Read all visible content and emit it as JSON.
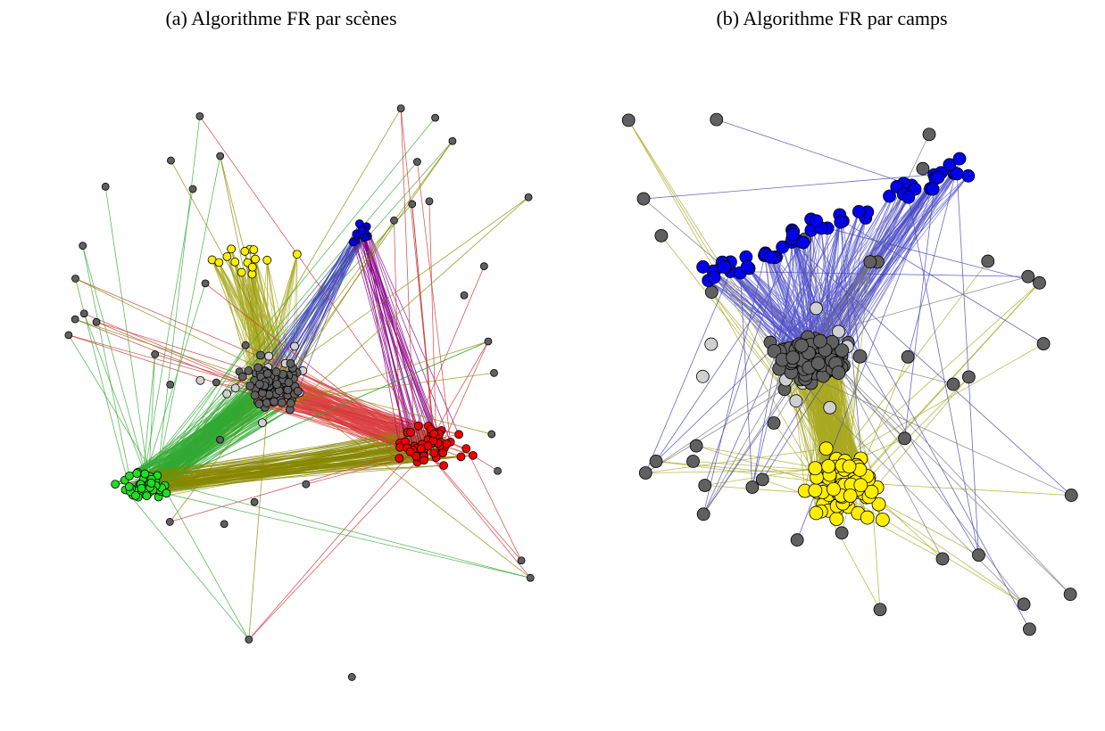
{
  "panels": [
    {
      "caption": "(a) Algorithme FR par scènes"
    },
    {
      "caption": "(b) Algorithme FR par camps"
    }
  ]
}
